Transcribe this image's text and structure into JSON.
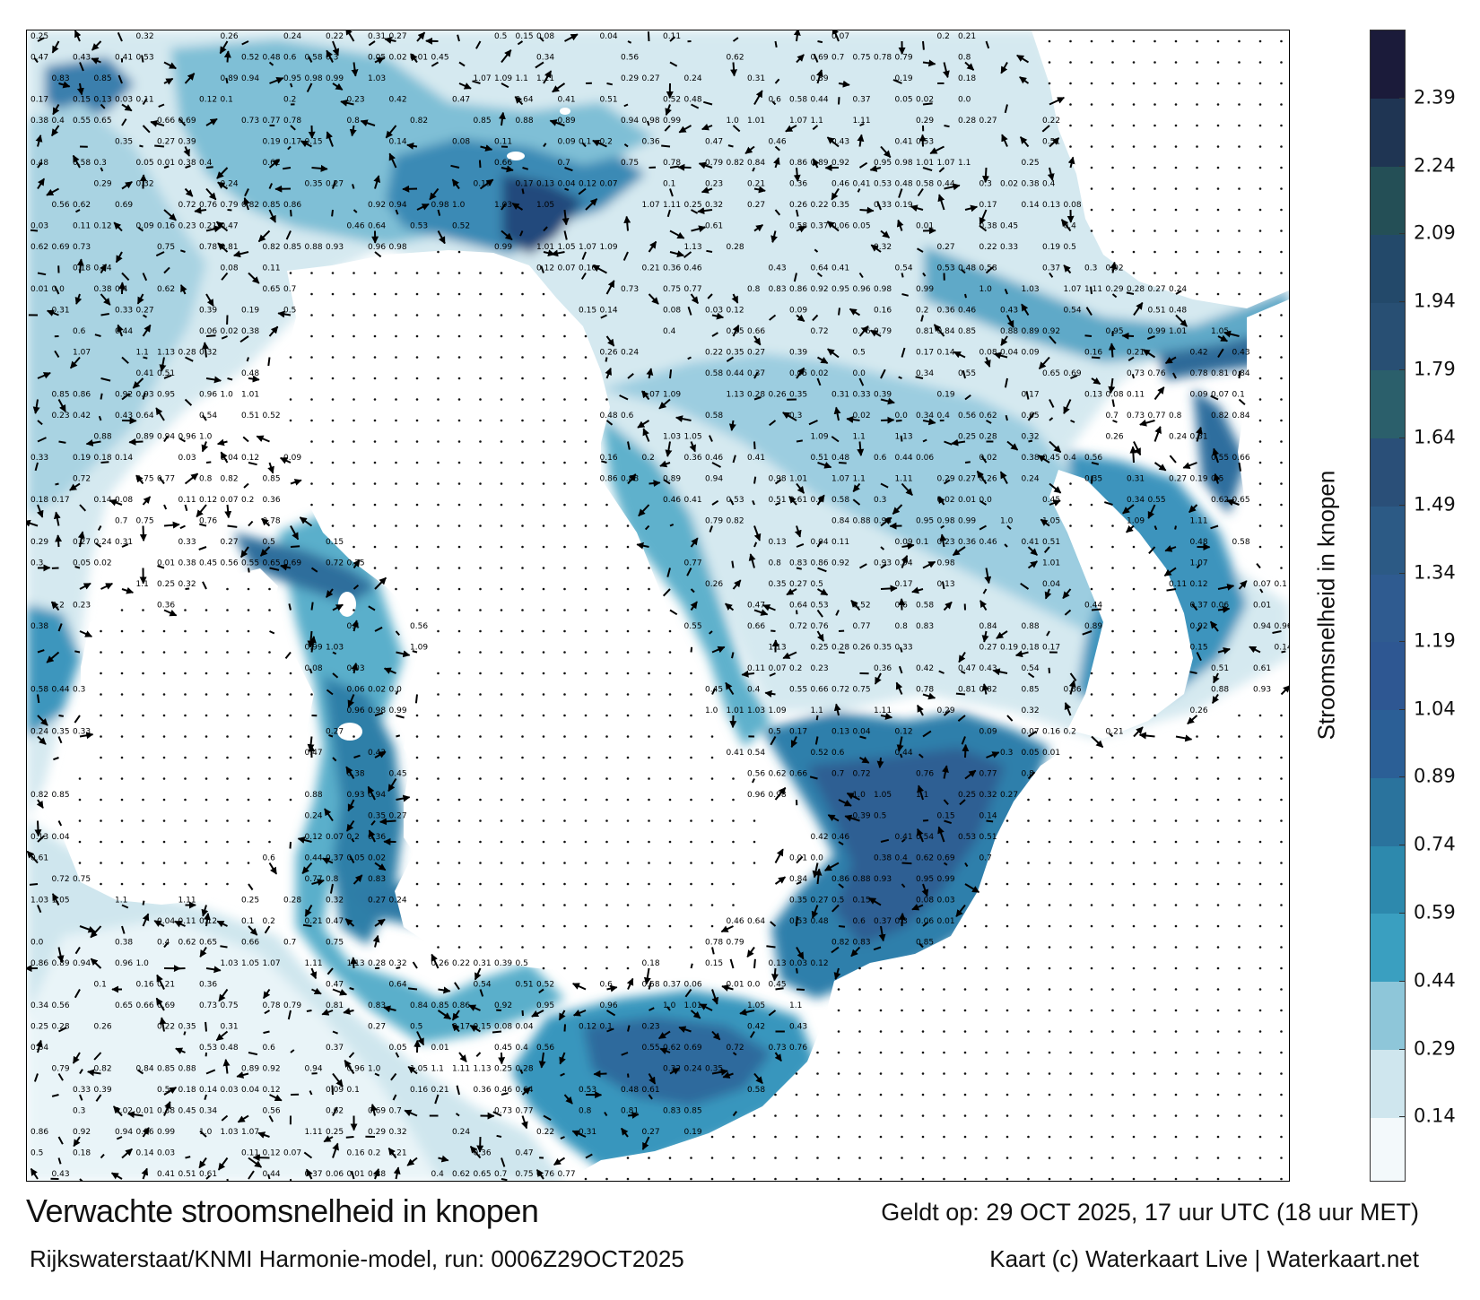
{
  "title": "Verwachte stroomsnelheid in knopen",
  "subtitle": "Rijkswaterstaat/KNMI Harmonie-model, run: 0006Z29OCT2025",
  "valid_time": "Geldt op: 29 OCT 2025, 17 uur UTC (18 uur MET)",
  "credit": "Kaart (c) Waterkaart Live | Waterkaart.net",
  "colorbar": {
    "label": "Stroomsnelheid in knopen",
    "range": [
      0,
      2.54
    ],
    "ticks": [
      "0.14",
      "0.29",
      "0.44",
      "0.59",
      "0.74",
      "0.89",
      "1.04",
      "1.19",
      "1.34",
      "1.49",
      "1.64",
      "1.79",
      "1.94",
      "2.09",
      "2.24",
      "2.39"
    ],
    "tick_values": [
      0.14,
      0.29,
      0.44,
      0.59,
      0.74,
      0.89,
      1.04,
      1.19,
      1.34,
      1.49,
      1.64,
      1.79,
      1.94,
      2.09,
      2.24,
      2.39
    ],
    "bands": [
      {
        "from": 0.0,
        "to": 0.14,
        "color": "#f3f9fb"
      },
      {
        "from": 0.14,
        "to": 0.29,
        "color": "#cfe6ee"
      },
      {
        "from": 0.29,
        "to": 0.44,
        "color": "#8ec6d9"
      },
      {
        "from": 0.44,
        "to": 0.59,
        "color": "#3a9fc0"
      },
      {
        "from": 0.59,
        "to": 0.74,
        "color": "#2d89ad"
      },
      {
        "from": 0.74,
        "to": 0.89,
        "color": "#2a739d"
      },
      {
        "from": 0.89,
        "to": 1.04,
        "color": "#2b5f96"
      },
      {
        "from": 1.04,
        "to": 1.19,
        "color": "#2e5792"
      },
      {
        "from": 1.19,
        "to": 1.34,
        "color": "#2f5b90"
      },
      {
        "from": 1.34,
        "to": 1.49,
        "color": "#2c5a85"
      },
      {
        "from": 1.49,
        "to": 1.64,
        "color": "#2a4f78"
      },
      {
        "from": 1.64,
        "to": 1.79,
        "color": "#2b5f6b"
      },
      {
        "from": 1.79,
        "to": 1.94,
        "color": "#284f73"
      },
      {
        "from": 1.94,
        "to": 2.09,
        "color": "#23496a"
      },
      {
        "from": 2.09,
        "to": 2.24,
        "color": "#244f56"
      },
      {
        "from": 2.24,
        "to": 2.39,
        "color": "#1f3553"
      },
      {
        "from": 2.39,
        "to": 2.54,
        "color": "#1b1b3a"
      }
    ]
  },
  "speed_labels": [
    "0.25",
    "0.29",
    "0.28",
    "0.32",
    "0.27",
    "0.26",
    "0.24",
    "0.22",
    "0.35",
    "0.31",
    "0.33",
    "0.27",
    "0.39",
    "0.19",
    "0.5",
    "0.18",
    "0.17",
    "0.15",
    "0.14",
    "0.13",
    "0.08",
    "0.03",
    "0.04",
    "0.11",
    "0.12",
    "0.09",
    "0.07",
    "0.1",
    "0.16",
    "0.2",
    "0.23",
    "0.21",
    "0.36",
    "0.42",
    "0.47",
    "0.46",
    "0.43",
    "0.64",
    "0.41",
    "0.54",
    "0.53",
    "0.51",
    "0.52",
    "0.48",
    "0.61",
    "0.6",
    "0.58",
    "0.44",
    "0.37",
    "0.3",
    "0.06",
    "0.05",
    "0.02",
    "0.01",
    "0.0",
    "0.38",
    "0.45",
    "0.34",
    "0.4",
    "0.56",
    "0.55",
    "0.62",
    "0.65",
    "0.66",
    "0.69",
    "0.7",
    "0.72",
    "0.73",
    "0.75",
    "0.76",
    "0.77",
    "0.78",
    "0.79",
    "0.8",
    "0.81",
    "0.82",
    "0.83",
    "0.84",
    "0.85",
    "0.86",
    "0.88",
    "0.89",
    "0.92",
    "0.93",
    "0.94",
    "0.95",
    "0.96",
    "0.98",
    "0.99",
    "1.0",
    "1.01",
    "1.03",
    "1.05",
    "1.07",
    "1.09",
    "1.1",
    "1.11",
    "1.13"
  ]
}
